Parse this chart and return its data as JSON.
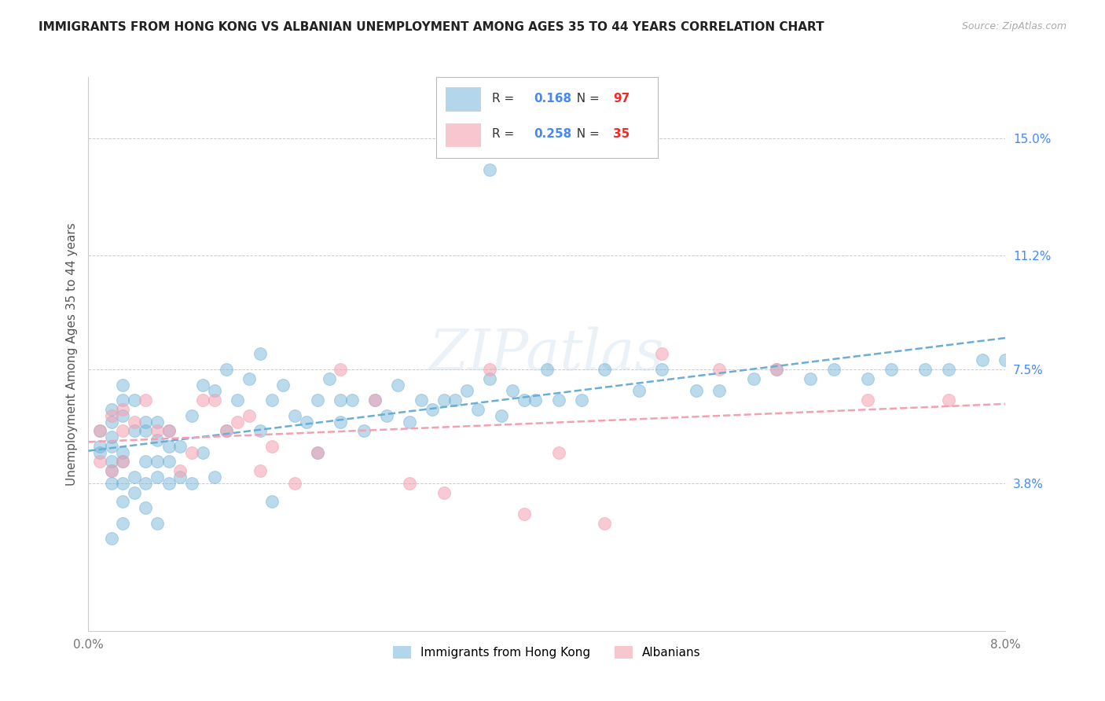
{
  "title": "IMMIGRANTS FROM HONG KONG VS ALBANIAN UNEMPLOYMENT AMONG AGES 35 TO 44 YEARS CORRELATION CHART",
  "source": "Source: ZipAtlas.com",
  "ylabel": "Unemployment Among Ages 35 to 44 years",
  "xlim": [
    0.0,
    0.08
  ],
  "ylim": [
    -0.01,
    0.17
  ],
  "yticks": [
    0.038,
    0.075,
    0.112,
    0.15
  ],
  "ytick_labels": [
    "3.8%",
    "7.5%",
    "11.2%",
    "15.0%"
  ],
  "xticks": [
    0.0,
    0.01,
    0.02,
    0.03,
    0.04,
    0.05,
    0.06,
    0.07,
    0.08
  ],
  "xtick_labels": [
    "0.0%",
    "",
    "",
    "",
    "",
    "",
    "",
    "",
    "8.0%"
  ],
  "hk_R": 0.168,
  "hk_N": 97,
  "alb_R": 0.258,
  "alb_N": 35,
  "hk_color": "#6aaed6",
  "alb_color": "#f4a0b0",
  "background_color": "#ffffff",
  "grid_color": "#cccccc",
  "watermark_text": "ZIPatlas",
  "legend_R_color": "#4488ff",
  "legend_N_color": "#ff2222",
  "hk_x": [
    0.001,
    0.001,
    0.001,
    0.002,
    0.002,
    0.002,
    0.002,
    0.002,
    0.002,
    0.002,
    0.003,
    0.003,
    0.003,
    0.003,
    0.003,
    0.003,
    0.003,
    0.004,
    0.004,
    0.004,
    0.004,
    0.005,
    0.005,
    0.005,
    0.005,
    0.005,
    0.006,
    0.006,
    0.006,
    0.006,
    0.007,
    0.007,
    0.007,
    0.007,
    0.008,
    0.008,
    0.009,
    0.009,
    0.01,
    0.01,
    0.011,
    0.011,
    0.012,
    0.012,
    0.013,
    0.014,
    0.015,
    0.015,
    0.016,
    0.017,
    0.018,
    0.019,
    0.02,
    0.02,
    0.021,
    0.022,
    0.023,
    0.024,
    0.025,
    0.026,
    0.027,
    0.028,
    0.029,
    0.03,
    0.031,
    0.032,
    0.033,
    0.034,
    0.035,
    0.036,
    0.037,
    0.038,
    0.039,
    0.04,
    0.041,
    0.043,
    0.045,
    0.048,
    0.05,
    0.053,
    0.055,
    0.058,
    0.06,
    0.063,
    0.065,
    0.068,
    0.07,
    0.073,
    0.075,
    0.078,
    0.08,
    0.035,
    0.022,
    0.016,
    0.006,
    0.003,
    0.002
  ],
  "hk_y": [
    0.055,
    0.05,
    0.048,
    0.062,
    0.058,
    0.053,
    0.05,
    0.045,
    0.042,
    0.038,
    0.07,
    0.065,
    0.06,
    0.048,
    0.045,
    0.038,
    0.032,
    0.065,
    0.055,
    0.04,
    0.035,
    0.058,
    0.055,
    0.045,
    0.038,
    0.03,
    0.058,
    0.052,
    0.045,
    0.04,
    0.055,
    0.05,
    0.045,
    0.038,
    0.05,
    0.04,
    0.06,
    0.038,
    0.07,
    0.048,
    0.068,
    0.04,
    0.075,
    0.055,
    0.065,
    0.072,
    0.08,
    0.055,
    0.065,
    0.07,
    0.06,
    0.058,
    0.065,
    0.048,
    0.072,
    0.058,
    0.065,
    0.055,
    0.065,
    0.06,
    0.07,
    0.058,
    0.065,
    0.062,
    0.065,
    0.065,
    0.068,
    0.062,
    0.072,
    0.06,
    0.068,
    0.065,
    0.065,
    0.075,
    0.065,
    0.065,
    0.075,
    0.068,
    0.075,
    0.068,
    0.068,
    0.072,
    0.075,
    0.072,
    0.075,
    0.072,
    0.075,
    0.075,
    0.075,
    0.078,
    0.078,
    0.14,
    0.065,
    0.032,
    0.025,
    0.025,
    0.02
  ],
  "alb_x": [
    0.001,
    0.001,
    0.002,
    0.002,
    0.003,
    0.003,
    0.003,
    0.004,
    0.005,
    0.006,
    0.007,
    0.008,
    0.009,
    0.01,
    0.011,
    0.012,
    0.013,
    0.014,
    0.015,
    0.016,
    0.018,
    0.02,
    0.022,
    0.025,
    0.028,
    0.031,
    0.035,
    0.038,
    0.041,
    0.045,
    0.05,
    0.055,
    0.06,
    0.068,
    0.075
  ],
  "alb_y": [
    0.055,
    0.045,
    0.06,
    0.042,
    0.062,
    0.055,
    0.045,
    0.058,
    0.065,
    0.055,
    0.055,
    0.042,
    0.048,
    0.065,
    0.065,
    0.055,
    0.058,
    0.06,
    0.042,
    0.05,
    0.038,
    0.048,
    0.075,
    0.065,
    0.038,
    0.035,
    0.075,
    0.028,
    0.048,
    0.025,
    0.08,
    0.075,
    0.075,
    0.065,
    0.065
  ]
}
